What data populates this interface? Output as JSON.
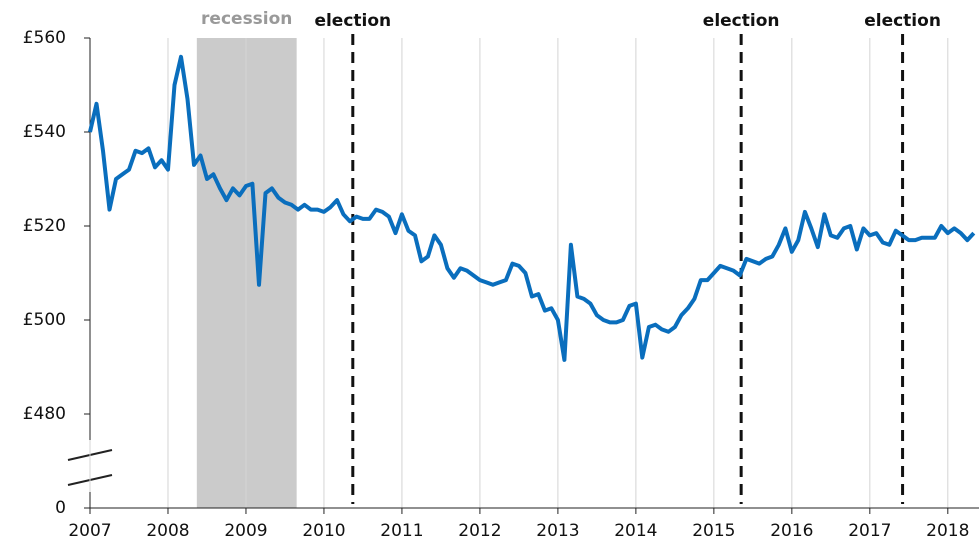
{
  "chart_data": {
    "type": "line",
    "color": "#0a6ebd",
    "x": [
      2007,
      2007.083,
      2007.167,
      2007.25,
      2007.333,
      2007.417,
      2007.5,
      2007.583,
      2007.667,
      2007.75,
      2007.833,
      2007.917,
      2008,
      2008.083,
      2008.167,
      2008.25,
      2008.333,
      2008.417,
      2008.5,
      2008.583,
      2008.667,
      2008.75,
      2008.833,
      2008.917,
      2009,
      2009.083,
      2009.167,
      2009.25,
      2009.333,
      2009.417,
      2009.5,
      2009.583,
      2009.667,
      2009.75,
      2009.833,
      2009.917,
      2010,
      2010.083,
      2010.167,
      2010.25,
      2010.333,
      2010.417,
      2010.5,
      2010.583,
      2010.667,
      2010.75,
      2010.833,
      2010.917,
      2011,
      2011.083,
      2011.167,
      2011.25,
      2011.333,
      2011.417,
      2011.5,
      2011.583,
      2011.667,
      2011.75,
      2011.833,
      2011.917,
      2012,
      2012.083,
      2012.167,
      2012.25,
      2012.333,
      2012.417,
      2012.5,
      2012.583,
      2012.667,
      2012.75,
      2012.833,
      2012.917,
      2013,
      2013.083,
      2013.167,
      2013.25,
      2013.333,
      2013.417,
      2013.5,
      2013.583,
      2013.667,
      2013.75,
      2013.833,
      2013.917,
      2014,
      2014.083,
      2014.167,
      2014.25,
      2014.333,
      2014.417,
      2014.5,
      2014.583,
      2014.667,
      2014.75,
      2014.833,
      2014.917,
      2015,
      2015.083,
      2015.167,
      2015.25,
      2015.333,
      2015.417,
      2015.5,
      2015.583,
      2015.667,
      2015.75,
      2015.833,
      2015.917,
      2016,
      2016.083,
      2016.167,
      2016.25,
      2016.333,
      2016.417,
      2016.5,
      2016.583,
      2016.667,
      2016.75,
      2016.833,
      2016.917,
      2017,
      2017.083,
      2017.167,
      2017.25,
      2017.333,
      2017.417,
      2017.5,
      2017.583,
      2017.667,
      2017.75,
      2017.833,
      2017.917,
      2018,
      2018.083,
      2018.167,
      2018.25,
      2018.333
    ],
    "values": [
      540,
      546,
      536,
      523.5,
      530,
      531,
      532,
      536,
      535.5,
      536.5,
      532.5,
      534,
      532,
      550,
      556,
      547,
      533,
      535,
      530,
      531,
      528,
      525.5,
      528,
      526.5,
      528.5,
      529,
      507.5,
      527,
      528,
      526,
      525,
      524.5,
      523.5,
      524.5,
      523.5,
      523.5,
      523,
      524,
      525.5,
      522.5,
      521,
      522,
      521.5,
      521.5,
      523.5,
      523,
      522,
      518.5,
      522.5,
      519,
      518,
      512.5,
      513.5,
      518,
      516,
      511,
      509,
      511,
      510.5,
      509.5,
      508.5,
      508,
      507.5,
      508,
      508.5,
      512,
      511.5,
      510,
      505,
      505.5,
      502,
      502.5,
      500,
      491.5,
      516,
      505,
      504.5,
      503.5,
      501,
      500,
      499.5,
      499.5,
      500,
      503,
      503.5,
      492,
      498.5,
      499,
      498,
      497.5,
      498.5,
      501,
      502.5,
      504.5,
      508.5,
      508.5,
      510,
      511.5,
      511,
      510.5,
      509.5,
      513,
      512.5,
      512,
      513,
      513.5,
      516,
      519.5,
      514.5,
      517,
      523,
      519.5,
      515.5,
      522.5,
      518,
      517.5,
      519.5,
      520,
      515,
      519.5,
      518,
      518.5,
      516.5,
      516,
      519,
      518,
      517,
      517,
      517.5,
      517.5,
      517.5,
      520,
      518.5,
      519.5,
      518.5,
      517,
      518.5
    ],
    "xlim": [
      2007,
      2018.4
    ],
    "xticks": [
      2007,
      2008,
      2009,
      2010,
      2011,
      2012,
      2013,
      2014,
      2015,
      2016,
      2017,
      2018
    ],
    "ylim": [
      0,
      560
    ],
    "y_break": [
      0,
      460
    ],
    "yticks": [
      0,
      {
        "value": 480,
        "label": "£480"
      },
      {
        "value": 500,
        "label": "£500"
      },
      {
        "value": 520,
        "label": "£520"
      },
      {
        "value": 540,
        "label": "£540"
      },
      {
        "value": 560,
        "label": "£560"
      }
    ],
    "grid": "x",
    "shaded_regions": [
      {
        "label": "recession",
        "x": [
          2008.37,
          2009.65
        ]
      }
    ],
    "vlines": [
      {
        "label": "election",
        "x": 2010.37
      },
      {
        "label": "election",
        "x": 2015.35
      },
      {
        "label": "election",
        "x": 2017.42
      }
    ]
  }
}
